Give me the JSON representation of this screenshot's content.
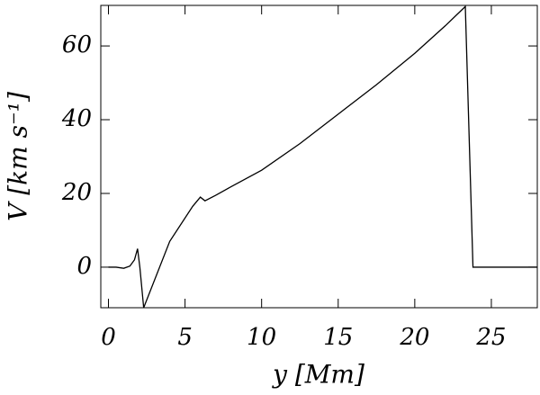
{
  "chart_data": {
    "type": "line",
    "xlabel": "y [Mm]",
    "ylabel": "V [km s⁻¹]",
    "x": [
      0,
      0.5,
      1,
      1.4,
      1.7,
      1.9,
      2.05,
      2.3,
      4,
      5.5,
      6,
      6.3,
      7,
      8,
      10,
      12.5,
      15,
      17.5,
      20,
      22,
      23.3,
      23.8,
      28
    ],
    "series": [
      {
        "color": "#000000",
        "values": [
          0,
          0,
          -0.3,
          0.3,
          2,
          5,
          0,
          -11,
          7,
          16.5,
          19,
          18,
          19.5,
          21.8,
          26.3,
          33.5,
          41.5,
          49.5,
          58,
          65.5,
          70.7,
          0,
          0
        ]
      }
    ],
    "xlim": [
      -0.5,
      28
    ],
    "ylim": [
      -11,
      71
    ],
    "xticks": [
      0,
      5,
      10,
      15,
      20,
      25
    ],
    "yticks": [
      0,
      20,
      40,
      60
    ]
  }
}
